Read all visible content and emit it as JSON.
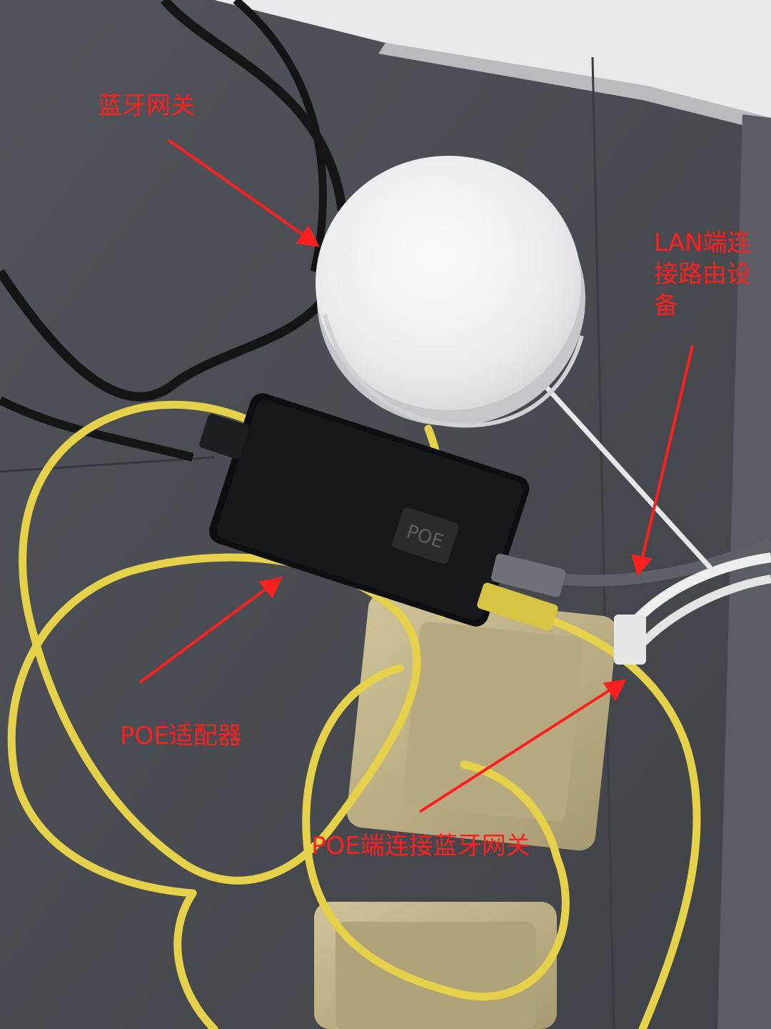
{
  "colors": {
    "annotation": "#ff1f1f",
    "desk": "#4a4d52",
    "cable_yellow": "#e6d24a",
    "cable_black": "#151515",
    "adapter_black": "#0d0e10",
    "gateway_white": "#f3f2f4",
    "wall_panel": "#e9eaec"
  },
  "annotations": {
    "gateway": "蓝牙网关",
    "lan_port": "LAN端连\n接路由设\n备",
    "poe_adapter": "POE适配器",
    "poe_port": "POE端连接蓝牙网关"
  },
  "objects": {
    "adapter_marking": "POE",
    "icons": [
      "ble-gateway-device",
      "poe-adapter-device",
      "ethernet-cable",
      "power-cable",
      "wall-socket"
    ]
  }
}
